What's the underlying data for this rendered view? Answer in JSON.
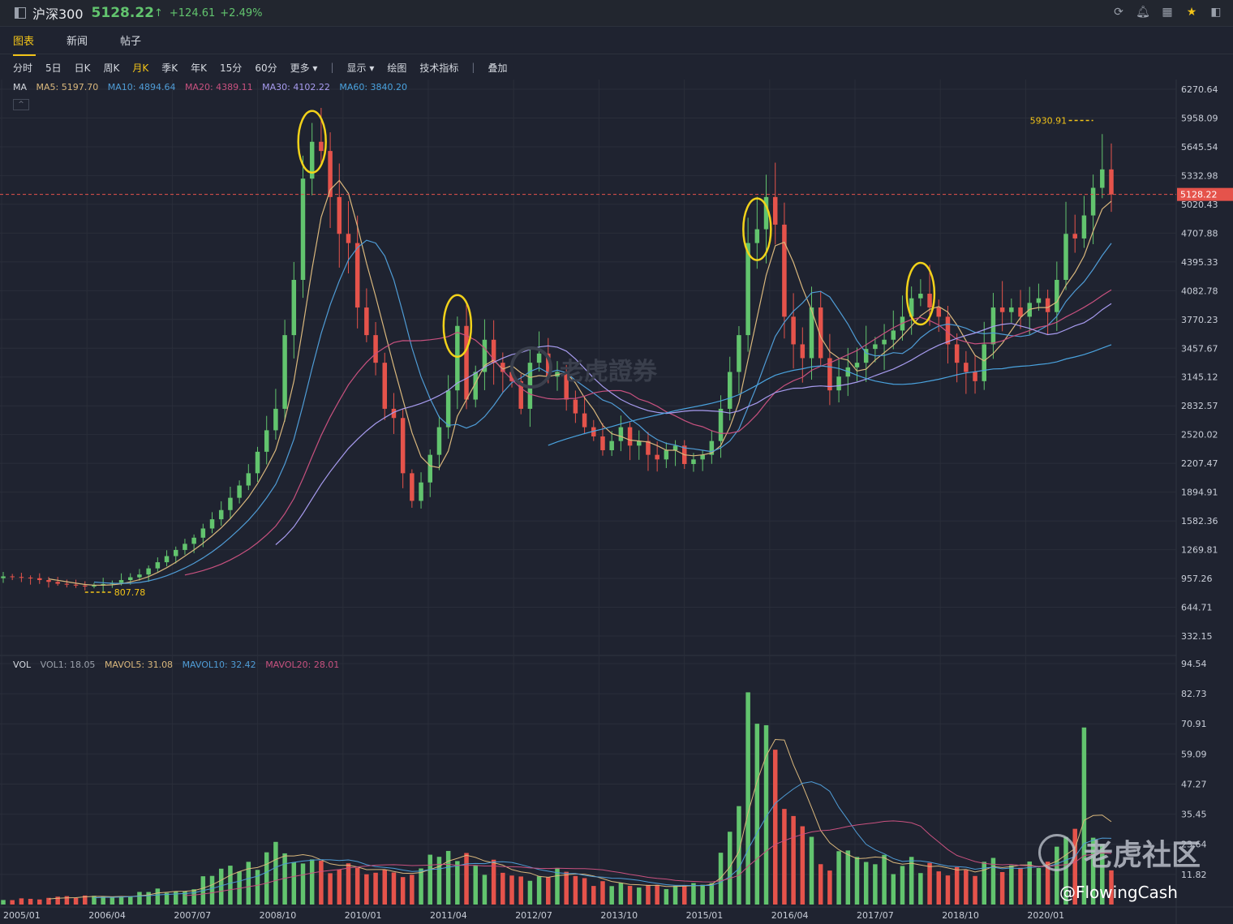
{
  "header": {
    "symbol": "沪深300",
    "price": "5128.22",
    "arrow": "↑",
    "change": "+124.61",
    "change_pct": "+2.49%",
    "icons": [
      "refresh-icon",
      "bell-icon",
      "grid-icon",
      "star-icon",
      "panel-icon"
    ]
  },
  "tabs": [
    "图表",
    "新闻",
    "帖子"
  ],
  "active_tab": 0,
  "toolbar": {
    "periods": [
      "分时",
      "5日",
      "日K",
      "周K",
      "月K",
      "季K",
      "年K",
      "15分",
      "60分"
    ],
    "active_period": 4,
    "more": "更多",
    "show": "显示",
    "draw": "绘图",
    "indicators": "技术指标",
    "overlay": "叠加"
  },
  "ma_legend": {
    "label": "MA",
    "items": [
      {
        "text": "MA5: 5197.70",
        "color": "#d9b77c"
      },
      {
        "text": "MA10: 4894.64",
        "color": "#4f9cd6"
      },
      {
        "text": "MA20: 4389.11",
        "color": "#c8517f"
      },
      {
        "text": "MA30: 4102.22",
        "color": "#a89cf0"
      },
      {
        "text": "MA60: 3840.20",
        "color": "#4aa3df"
      }
    ]
  },
  "vol_legend": {
    "label": "VOL",
    "items": [
      {
        "text": "VOL1: 18.05",
        "color": "#9aa0ab"
      },
      {
        "text": "MAVOL5: 31.08",
        "color": "#d9b77c"
      },
      {
        "text": "MAVOL10: 32.42",
        "color": "#4f9cd6"
      },
      {
        "text": "MAVOL20: 28.01",
        "color": "#c8517f"
      }
    ]
  },
  "colors": {
    "up": "#62c46e",
    "down": "#e5534b",
    "current": "#e5534b",
    "annot": "#f2c318",
    "circle": "#f2d21a"
  },
  "chart_data": [
    {
      "type": "candlestick",
      "title": "沪深300",
      "period": "月K",
      "ylim": [
        332.15,
        6270.64
      ],
      "y_ticks": [
        "6270.64",
        "5958.09",
        "5645.54",
        "5332.98",
        "5020.43",
        "4707.88",
        "4395.33",
        "4082.78",
        "3770.23",
        "3457.67",
        "3145.12",
        "2832.57",
        "2520.02",
        "2207.47",
        "1894.91",
        "1582.36",
        "1269.81",
        "957.26",
        "644.71",
        "332.15"
      ],
      "x_ticks": [
        "2005/01",
        "2006/04",
        "2007/07",
        "2008/10",
        "2010/01",
        "2011/04",
        "2012/07",
        "2013/10",
        "2015/01",
        "2016/04",
        "2017/07",
        "2018/10",
        "2020/01"
      ],
      "current_price": "5128.22",
      "high_label": "5930.91",
      "low_label": "807.78",
      "close_path": [
        [
          0,
          980
        ],
        [
          3,
          960
        ],
        [
          6,
          900
        ],
        [
          9,
          870
        ],
        [
          12,
          910
        ],
        [
          15,
          1000
        ],
        [
          18,
          1200
        ],
        [
          21,
          1400
        ],
        [
          24,
          1700
        ],
        [
          27,
          2100
        ],
        [
          30,
          2800
        ],
        [
          31,
          3600
        ],
        [
          32,
          4200
        ],
        [
          33,
          5300
        ],
        [
          34,
          5700
        ],
        [
          35,
          5600
        ],
        [
          36,
          5100
        ],
        [
          37,
          4700
        ],
        [
          38,
          4600
        ],
        [
          39,
          3900
        ],
        [
          40,
          3600
        ],
        [
          41,
          3300
        ],
        [
          42,
          2800
        ],
        [
          43,
          2700
        ],
        [
          44,
          2100
        ],
        [
          45,
          1800
        ],
        [
          46,
          2000
        ],
        [
          47,
          2300
        ],
        [
          48,
          2600
        ],
        [
          49,
          3000
        ],
        [
          50,
          3700
        ],
        [
          51,
          2900
        ],
        [
          52,
          3200
        ],
        [
          53,
          3550
        ],
        [
          54,
          3300
        ],
        [
          55,
          3200
        ],
        [
          56,
          3100
        ],
        [
          57,
          2800
        ],
        [
          58,
          3300
        ],
        [
          59,
          3400
        ],
        [
          60,
          3150
        ],
        [
          61,
          3200
        ],
        [
          62,
          2900
        ],
        [
          63,
          2750
        ],
        [
          64,
          2600
        ],
        [
          65,
          2500
        ],
        [
          66,
          2350
        ],
        [
          67,
          2450
        ],
        [
          68,
          2600
        ],
        [
          69,
          2400
        ],
        [
          70,
          2450
        ],
        [
          71,
          2300
        ],
        [
          72,
          2250
        ],
        [
          73,
          2350
        ],
        [
          74,
          2400
        ],
        [
          75,
          2200
        ],
        [
          76,
          2250
        ],
        [
          77,
          2300
        ],
        [
          78,
          2450
        ],
        [
          79,
          2800
        ],
        [
          80,
          3200
        ],
        [
          81,
          3600
        ],
        [
          82,
          4600
        ],
        [
          83,
          4750
        ],
        [
          84,
          5100
        ],
        [
          85,
          4800
        ],
        [
          86,
          3800
        ],
        [
          87,
          3500
        ],
        [
          88,
          3350
        ],
        [
          89,
          3900
        ],
        [
          90,
          3350
        ],
        [
          91,
          3000
        ],
        [
          92,
          3150
        ],
        [
          93,
          3250
        ],
        [
          94,
          3300
        ],
        [
          95,
          3450
        ],
        [
          96,
          3500
        ],
        [
          97,
          3550
        ],
        [
          98,
          3650
        ],
        [
          99,
          3800
        ],
        [
          100,
          4000
        ],
        [
          101,
          4050
        ],
        [
          102,
          3900
        ],
        [
          103,
          3800
        ],
        [
          104,
          3500
        ],
        [
          105,
          3300
        ],
        [
          106,
          3200
        ],
        [
          107,
          3100
        ],
        [
          108,
          3500
        ],
        [
          109,
          3900
        ],
        [
          110,
          3850
        ],
        [
          111,
          3900
        ],
        [
          112,
          3800
        ],
        [
          113,
          3950
        ],
        [
          114,
          4000
        ],
        [
          115,
          3850
        ],
        [
          116,
          4200
        ],
        [
          117,
          4700
        ],
        [
          118,
          4650
        ],
        [
          119,
          4900
        ],
        [
          120,
          5200
        ],
        [
          121,
          5400
        ],
        [
          122,
          5128
        ]
      ],
      "ma_lines": [
        {
          "name": "MA5",
          "color": "#d9b77c",
          "start": 5,
          "smooth": 5
        },
        {
          "name": "MA10",
          "color": "#4f9cd6",
          "start": 10,
          "smooth": 10
        },
        {
          "name": "MA20",
          "color": "#c8517f",
          "start": 20,
          "smooth": 20
        },
        {
          "name": "MA30",
          "color": "#a89cf0",
          "start": 30,
          "smooth": 30
        },
        {
          "name": "MA60",
          "color": "#4aa3df",
          "start": 60,
          "smooth": 60
        }
      ],
      "highlight_months": [
        34,
        50,
        83,
        101
      ]
    },
    {
      "type": "bar",
      "title": "VOL",
      "ylim": [
        0,
        94.54
      ],
      "y_ticks": [
        "94.54",
        "82.73",
        "70.91",
        "59.09",
        "47.27",
        "35.45",
        "23.64",
        "11.82"
      ],
      "volume_profile": [
        [
          0,
          2
        ],
        [
          10,
          3
        ],
        [
          20,
          6
        ],
        [
          25,
          14
        ],
        [
          30,
          20
        ],
        [
          35,
          17
        ],
        [
          40,
          12
        ],
        [
          45,
          15
        ],
        [
          50,
          18
        ],
        [
          55,
          14
        ],
        [
          60,
          12
        ],
        [
          65,
          10
        ],
        [
          70,
          8
        ],
        [
          75,
          7
        ],
        [
          78,
          12
        ],
        [
          80,
          30
        ],
        [
          82,
          80
        ],
        [
          83,
          94
        ],
        [
          84,
          94
        ],
        [
          85,
          70
        ],
        [
          86,
          40
        ],
        [
          88,
          25
        ],
        [
          90,
          20
        ],
        [
          95,
          15
        ],
        [
          100,
          18
        ],
        [
          105,
          12
        ],
        [
          110,
          18
        ],
        [
          115,
          20
        ],
        [
          118,
          30
        ],
        [
          119,
          57
        ],
        [
          120,
          35
        ],
        [
          122,
          18
        ]
      ]
    }
  ],
  "watermarks": {
    "chart": "老虎證券",
    "corner": "老虎社区",
    "handle": "@FlowingCash"
  }
}
